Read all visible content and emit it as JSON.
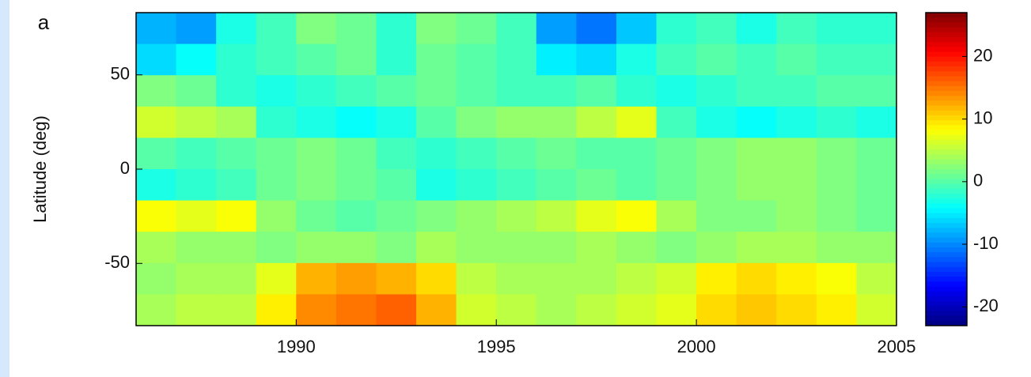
{
  "chart_data": {
    "type": "heatmap",
    "panel_label": "a",
    "ylabel": "Latitude (deg)",
    "xbins": [
      1986,
      1987,
      1988,
      1989,
      1990,
      1991,
      1992,
      1993,
      1994,
      1995,
      1996,
      1997,
      1998,
      1999,
      2000,
      2001,
      2002,
      2003,
      2004,
      2005
    ],
    "ybins": [
      83,
      66.4,
      49.8,
      33.2,
      16.6,
      0,
      -16.6,
      -33.2,
      -49.8,
      -66.4,
      -83
    ],
    "z": [
      [
        -8,
        -9,
        -3,
        -1,
        2,
        1,
        -2,
        2,
        1,
        -1,
        -9,
        -11,
        -7,
        -2,
        -1,
        -3,
        -1,
        -2,
        -2
      ],
      [
        -6,
        -4,
        -2,
        -1,
        0,
        1,
        -2,
        1,
        0,
        -1,
        -5,
        -6,
        -3,
        -1,
        0,
        -1,
        0,
        -1,
        -1
      ],
      [
        2,
        1,
        -2,
        -3,
        -2,
        -1,
        0,
        1,
        0,
        -1,
        -1,
        0,
        -2,
        -3,
        -2,
        -1,
        -1,
        0,
        0
      ],
      [
        6,
        5,
        4,
        -2,
        -3,
        -4,
        -3,
        0,
        2,
        3,
        3,
        5,
        7,
        -1,
        -3,
        -4,
        -3,
        -2,
        -3
      ],
      [
        0,
        -1,
        0,
        1,
        2,
        1,
        -1,
        -2,
        -1,
        0,
        1,
        0,
        0,
        1,
        2,
        3,
        3,
        2,
        1
      ],
      [
        -3,
        -2,
        -1,
        1,
        2,
        1,
        0,
        -3,
        -2,
        -1,
        0,
        1,
        0,
        1,
        2,
        3,
        3,
        2,
        1
      ],
      [
        8,
        7,
        8,
        3,
        1,
        0,
        1,
        2,
        3,
        4,
        5,
        7,
        8,
        4,
        2,
        2,
        3,
        2,
        1
      ],
      [
        4,
        3,
        3,
        2,
        3,
        3,
        2,
        4,
        3,
        3,
        3,
        4,
        3,
        2,
        3,
        4,
        4,
        3,
        3
      ],
      [
        3,
        4,
        4,
        7,
        12,
        13,
        12,
        10,
        5,
        4,
        4,
        4,
        5,
        6,
        9,
        10,
        9,
        8,
        5
      ],
      [
        4,
        5,
        5,
        9,
        14,
        15,
        16,
        12,
        6,
        5,
        4,
        5,
        6,
        7,
        10,
        11,
        10,
        9,
        6
      ]
    ],
    "xlim": [
      1986,
      2005
    ],
    "xticks": [
      1990,
      1995,
      2000,
      2005
    ],
    "ylim": [
      -83,
      83
    ],
    "yticks": [
      -50,
      0,
      50
    ],
    "colormap": "jet",
    "clim": [
      -23,
      27
    ],
    "cticks": [
      -20,
      -10,
      0,
      10,
      20
    ]
  }
}
